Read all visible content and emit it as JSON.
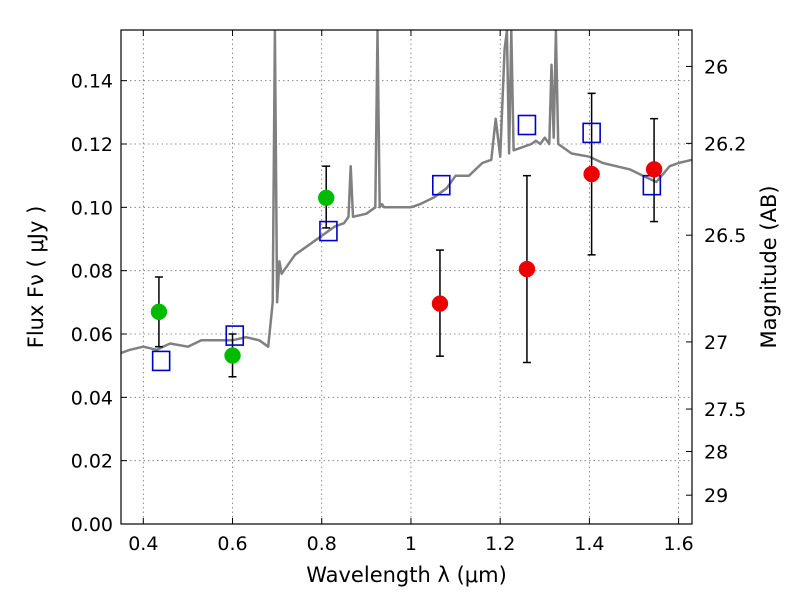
{
  "chart_data": {
    "type": "scatter",
    "xlabel": "Wavelength  λ (μm)",
    "ylabel": "Flux  Fν  ( μJy )",
    "ylabel_right": "Magnitude (AB)",
    "xlim": [
      0.35,
      1.63
    ],
    "ylim": [
      0.0,
      0.156
    ],
    "grid": true,
    "x_ticks": [
      0.4,
      0.6,
      0.8,
      1.0,
      1.2,
      1.4,
      1.6
    ],
    "x_tick_labels": [
      "0.4",
      "0.6",
      "0.8",
      "1",
      "1.2",
      "1.4",
      "1.6"
    ],
    "y_ticks": [
      0.0,
      0.02,
      0.04,
      0.06,
      0.08,
      0.1,
      0.12,
      0.14
    ],
    "y_tick_labels": [
      "0.00",
      "0.02",
      "0.04",
      "0.06",
      "0.08",
      "0.10",
      "0.12",
      "0.14"
    ],
    "right_ticks": [
      {
        "label": "26",
        "flux": 0.1445
      },
      {
        "label": "26.2",
        "flux": 0.1202
      },
      {
        "label": "26.5",
        "flux": 0.0912
      },
      {
        "label": "27",
        "flux": 0.0575
      },
      {
        "label": "27.5",
        "flux": 0.0363
      },
      {
        "label": "28",
        "flux": 0.0229
      },
      {
        "label": "29",
        "flux": 0.0091
      }
    ],
    "series": [
      {
        "marker": "line",
        "color": "#808080",
        "x": [
          0.35,
          0.37,
          0.4,
          0.43,
          0.46,
          0.5,
          0.53,
          0.56,
          0.6,
          0.63,
          0.66,
          0.68,
          0.69,
          0.695,
          0.7,
          0.705,
          0.71,
          0.74,
          0.77,
          0.8,
          0.83,
          0.85,
          0.86,
          0.865,
          0.87,
          0.9,
          0.92,
          0.925,
          0.93,
          0.935,
          0.94,
          0.97,
          1.0,
          1.02,
          1.05,
          1.08,
          1.1,
          1.13,
          1.16,
          1.18,
          1.19,
          1.2,
          1.21,
          1.215,
          1.22,
          1.225,
          1.23,
          1.25,
          1.27,
          1.28,
          1.29,
          1.3,
          1.31,
          1.315,
          1.32,
          1.325,
          1.33,
          1.36,
          1.4,
          1.43,
          1.46,
          1.49,
          1.52,
          1.55,
          1.58,
          1.6,
          1.63
        ],
        "y": [
          0.054,
          0.055,
          0.056,
          0.055,
          0.057,
          0.056,
          0.058,
          0.058,
          0.058,
          0.059,
          0.058,
          0.056,
          0.07,
          0.156,
          0.07,
          0.083,
          0.079,
          0.085,
          0.088,
          0.091,
          0.094,
          0.095,
          0.097,
          0.113,
          0.097,
          0.098,
          0.1,
          0.156,
          0.1,
          0.101,
          0.1,
          0.1,
          0.1,
          0.101,
          0.103,
          0.106,
          0.11,
          0.11,
          0.114,
          0.115,
          0.128,
          0.116,
          0.15,
          0.156,
          0.117,
          0.156,
          0.118,
          0.119,
          0.12,
          0.121,
          0.12,
          0.122,
          0.12,
          0.145,
          0.122,
          0.156,
          0.12,
          0.117,
          0.116,
          0.114,
          0.113,
          0.112,
          0.11,
          0.108,
          0.113,
          0.114,
          0.115
        ]
      },
      {
        "marker": "square",
        "color": "#0000cc",
        "x": [
          0.44,
          0.605,
          0.815,
          1.068,
          1.26,
          1.405,
          1.54
        ],
        "y": [
          0.0515,
          0.0595,
          0.0925,
          0.107,
          0.126,
          0.1235,
          0.107
        ]
      },
      {
        "marker": "circle",
        "color": "#00bb00",
        "x": [
          0.435,
          0.6,
          0.81
        ],
        "y": [
          0.067,
          0.0532,
          0.103
        ],
        "yerr_lo": [
          0.056,
          0.0465,
          0.0935
        ],
        "yerr_hi": [
          0.078,
          0.06,
          0.113
        ]
      },
      {
        "marker": "circle",
        "color": "#ee0000",
        "x": [
          1.065,
          1.26,
          1.405,
          1.545
        ],
        "y": [
          0.0696,
          0.0805,
          0.1105,
          0.112
        ],
        "yerr_lo": [
          0.053,
          0.051,
          0.085,
          0.0955
        ],
        "yerr_hi": [
          0.0865,
          0.11,
          0.136,
          0.128
        ]
      }
    ]
  }
}
